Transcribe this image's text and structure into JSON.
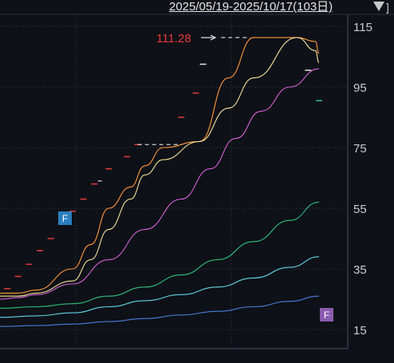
{
  "header": {
    "date_range": "2025/05/19-2025/10/17(103日)"
  },
  "chart_data": {
    "type": "line",
    "x_range": [
      "2025/05/19",
      "2025/10/17"
    ],
    "x_count": 103,
    "ylim": [
      10,
      117
    ],
    "yticks": [
      "115",
      "95",
      "75",
      "55",
      "35",
      "15"
    ],
    "ytick_values": [
      115,
      95,
      75,
      55,
      35,
      15
    ],
    "grid": true,
    "annotations": {
      "max_label": "111.28",
      "max_value": 111.28,
      "marker_f1": "F",
      "marker_f2": "F",
      "marker_f1_color": "#2b7fc0",
      "marker_f2_color": "#8a5cb0"
    },
    "series": [
      {
        "color": "#ff9a3c",
        "x": [
          0,
          5,
          10,
          20,
          25,
          30,
          36,
          40,
          45,
          55,
          63,
          70,
          82,
          87,
          88
        ],
        "values": [
          27,
          27,
          28,
          35,
          43,
          55,
          62,
          69,
          75,
          77,
          98,
          111.3,
          111.3,
          110,
          106
        ]
      },
      {
        "color": "#f2e39a",
        "x": [
          0,
          5,
          10,
          20,
          25,
          30,
          36,
          40,
          45,
          55,
          63,
          70,
          82,
          87,
          88
        ],
        "values": [
          26,
          26,
          27,
          31,
          38,
          48,
          58,
          66,
          71,
          77,
          88,
          98,
          111.3,
          107,
          103
        ]
      },
      {
        "color": "#d65fd6",
        "x": [
          0,
          5,
          10,
          20,
          30,
          40,
          50,
          58,
          65,
          72,
          80,
          88
        ],
        "values": [
          25,
          25.5,
          26.5,
          30,
          38,
          48,
          58,
          68,
          78,
          87,
          95,
          101
        ]
      },
      {
        "color": "#2ec27e",
        "x": [
          0,
          10,
          20,
          30,
          40,
          50,
          60,
          70,
          80,
          88
        ],
        "values": [
          22,
          22.5,
          23.5,
          26,
          29,
          33,
          38,
          44,
          51,
          57
        ]
      },
      {
        "color": "#5fd6e6",
        "x": [
          0,
          10,
          20,
          30,
          40,
          50,
          60,
          70,
          80,
          88
        ],
        "values": [
          19,
          19.5,
          20.5,
          22.5,
          24.5,
          26.5,
          29,
          32,
          35.5,
          39
        ]
      },
      {
        "color": "#4a7fe0",
        "x": [
          0,
          10,
          20,
          30,
          40,
          50,
          60,
          70,
          80,
          88
        ],
        "values": [
          16,
          16.3,
          16.8,
          17.6,
          18.6,
          19.8,
          21,
          22.5,
          24.3,
          26
        ]
      }
    ],
    "markers": {
      "red": [
        [
          2,
          28.5
        ],
        [
          5,
          32.5
        ],
        [
          8,
          36.5
        ],
        [
          11,
          41
        ],
        [
          14,
          45
        ],
        [
          17,
          50
        ],
        [
          20,
          54
        ],
        [
          23,
          58
        ],
        [
          26,
          63
        ],
        [
          30,
          68
        ],
        [
          35,
          72
        ],
        [
          38,
          76
        ],
        [
          50,
          85
        ],
        [
          54,
          93
        ]
      ],
      "white": [
        [
          56,
          102.5
        ],
        [
          85,
          100.5
        ]
      ],
      "teal": [
        [
          88,
          90.5
        ]
      ],
      "dashes": [
        [
          27,
          64,
          29,
          64
        ],
        [
          38,
          76,
          50,
          76
        ],
        [
          61,
          111.3,
          69,
          111.3
        ]
      ]
    }
  }
}
